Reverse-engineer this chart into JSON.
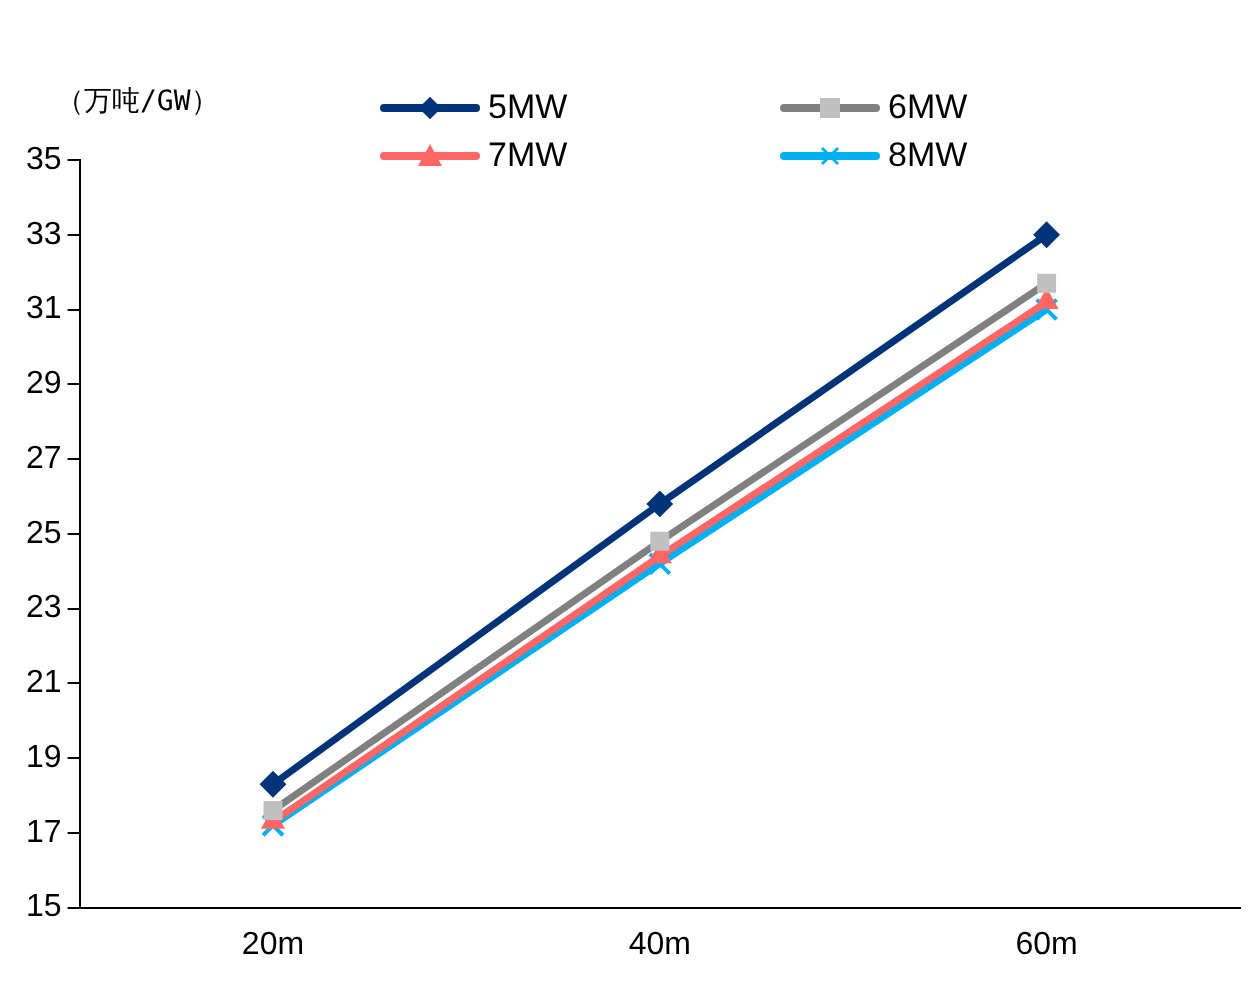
{
  "chart_data": {
    "type": "line",
    "ylabel": "（万吨/GW）",
    "categories": [
      "20m",
      "40m",
      "60m"
    ],
    "ylim": [
      15,
      35
    ],
    "yticks": [
      15,
      17,
      19,
      21,
      23,
      25,
      27,
      29,
      31,
      33,
      35
    ],
    "grid": false,
    "legend": "top",
    "line_style": "solid",
    "series": [
      {
        "name": "5MW",
        "color": "#003378",
        "marker": "diamond",
        "values": [
          18.3,
          25.8,
          33.0
        ]
      },
      {
        "name": "6MW",
        "color": "#808080",
        "marker": "square",
        "values": [
          17.6,
          24.8,
          31.7
        ]
      },
      {
        "name": "7MW",
        "color": "#ff6666",
        "marker": "triangle",
        "values": [
          17.3,
          24.4,
          31.2
        ]
      },
      {
        "name": "8MW",
        "color": "#00b0f0",
        "marker": "cross",
        "values": [
          17.2,
          24.2,
          31.0
        ]
      }
    ]
  }
}
